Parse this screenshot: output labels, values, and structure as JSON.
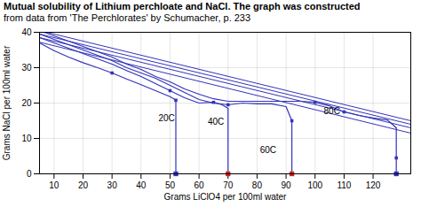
{
  "chart_data": {
    "type": "line",
    "title": "Mutual solubility of Lithium perchloate and NaCl. The graph was constructed",
    "subtitle": "from data from 'The Perchlorates' by Schumacher, p. 233",
    "xlabel": "Grams LiClO4 per 100ml water",
    "ylabel": "Grams NaCl per 100ml water",
    "xlim": [
      5,
      133
    ],
    "ylim": [
      0,
      40
    ],
    "xticks": [
      10,
      20,
      30,
      40,
      50,
      60,
      70,
      80,
      90,
      100,
      110,
      120
    ],
    "yticks": [
      0,
      10,
      20,
      30,
      40
    ],
    "grid": true,
    "color": "#3333bb",
    "series": [
      {
        "name": "20C",
        "label_x": 46,
        "label_y": 15,
        "segments": [
          [
            [
              5,
              37
            ],
            [
              10,
              34.8
            ],
            [
              15,
              33.0
            ],
            [
              20,
              31.4
            ],
            [
              25,
              30.0
            ],
            [
              30,
              28.5
            ],
            [
              35,
              26.8
            ],
            [
              40,
              25.2
            ],
            [
              45,
              23.5
            ],
            [
              50,
              21.8
            ],
            [
              52,
              20.8
            ]
          ],
          [
            [
              52,
              20.8
            ],
            [
              52,
              7.0
            ],
            [
              52,
              0.2
            ]
          ]
        ],
        "dots": [
          [
            30,
            28.5
          ],
          [
            52,
            20.8
          ],
          [
            52,
            0.2
          ]
        ]
      },
      {
        "name": "40C",
        "label_x": 63,
        "label_y": 14.0,
        "segments": [
          [
            [
              5,
              38.5
            ],
            [
              10,
              37.0
            ],
            [
              15,
              35.5
            ],
            [
              20,
              34.0
            ],
            [
              25,
              32.5
            ],
            [
              30,
              31.0
            ],
            [
              35,
              29.2
            ],
            [
              40,
              27.5
            ],
            [
              45,
              25.5
            ],
            [
              50,
              23.5
            ],
            [
              55,
              21.5
            ],
            [
              60,
              20.0
            ],
            [
              65,
              20.2
            ],
            [
              68,
              19.5
            ],
            [
              70,
              18.5
            ]
          ],
          [
            [
              70,
              18.5
            ],
            [
              70,
              5.0
            ],
            [
              70,
              0.2
            ]
          ]
        ],
        "dots": [
          [
            50,
            23.5
          ],
          [
            65,
            20.2
          ],
          [
            70,
            0.2
          ]
        ]
      },
      {
        "name": "60C",
        "label_x": 81,
        "label_y": 6.0,
        "segments": [
          [
            [
              5,
              39.5
            ],
            [
              10,
              38.0
            ],
            [
              15,
              36.5
            ],
            [
              20,
              35.0
            ],
            [
              25,
              33.5
            ],
            [
              30,
              32.0
            ],
            [
              35,
              30.0
            ],
            [
              40,
              28.5
            ],
            [
              45,
              27.0
            ],
            [
              50,
              25.0
            ],
            [
              55,
              23.0
            ],
            [
              60,
              21.0
            ],
            [
              65,
              20.0
            ],
            [
              70,
              19.5
            ],
            [
              75,
              20.0
            ],
            [
              80,
              19.8
            ],
            [
              85,
              19.8
            ],
            [
              90,
              19.0
            ],
            [
              92,
              15.0
            ]
          ],
          [
            [
              92,
              15.0
            ],
            [
              92,
              6.0
            ],
            [
              92,
              0.2
            ]
          ]
        ],
        "dots": [
          [
            70,
            19.5
          ],
          [
            92,
            15.0
          ],
          [
            92,
            0.2
          ]
        ]
      },
      {
        "name": "80C",
        "label_x": 103,
        "label_y": 17.0,
        "segments": [
          [
            [
              5,
              40.5
            ],
            [
              10,
              39.0
            ],
            [
              15,
              37.5
            ],
            [
              20,
              36.0
            ],
            [
              25,
              34.5
            ],
            [
              30,
              33.0
            ],
            [
              35,
              31.0
            ],
            [
              40,
              29.5
            ],
            [
              45,
              27.5
            ],
            [
              50,
              26.0
            ],
            [
              55,
              24.0
            ],
            [
              60,
              22.5
            ],
            [
              65,
              21.2
            ],
            [
              70,
              20.5
            ],
            [
              75,
              20.5
            ],
            [
              80,
              20.5
            ],
            [
              85,
              20.5
            ],
            [
              90,
              20.5
            ],
            [
              95,
              20.5
            ],
            [
              100,
              20.2
            ],
            [
              105,
              19.2
            ],
            [
              110,
              17.5
            ],
            [
              115,
              16.5
            ],
            [
              120,
              15.8
            ],
            [
              125,
              15.2
            ],
            [
              128,
              13.0
            ]
          ],
          [
            [
              128,
              13.0
            ],
            [
              128,
              4.5
            ],
            [
              128,
              0.2
            ]
          ]
        ],
        "dots": [
          [
            100,
            20.2
          ],
          [
            110,
            17.5
          ],
          [
            128,
            4.5
          ]
        ]
      }
    ],
    "lines": [
      {
        "start": [
          5,
          40.5
        ],
        "end": [
          133,
          15.0
        ]
      },
      {
        "start": [
          5,
          39.5
        ],
        "end": [
          133,
          14.0
        ]
      },
      {
        "start": [
          5,
          38.5
        ],
        "end": [
          133,
          13.0
        ]
      },
      {
        "start": [
          5,
          37.2
        ],
        "end": [
          133,
          11.5
        ]
      }
    ],
    "markers": [
      {
        "x": 52,
        "y": 0,
        "color": "#3333bb"
      },
      {
        "x": 70,
        "y": 0,
        "color": "#cc2222"
      },
      {
        "x": 92,
        "y": 0,
        "color": "#cc2222"
      },
      {
        "x": 128,
        "y": 0,
        "color": "#3333bb"
      }
    ]
  }
}
